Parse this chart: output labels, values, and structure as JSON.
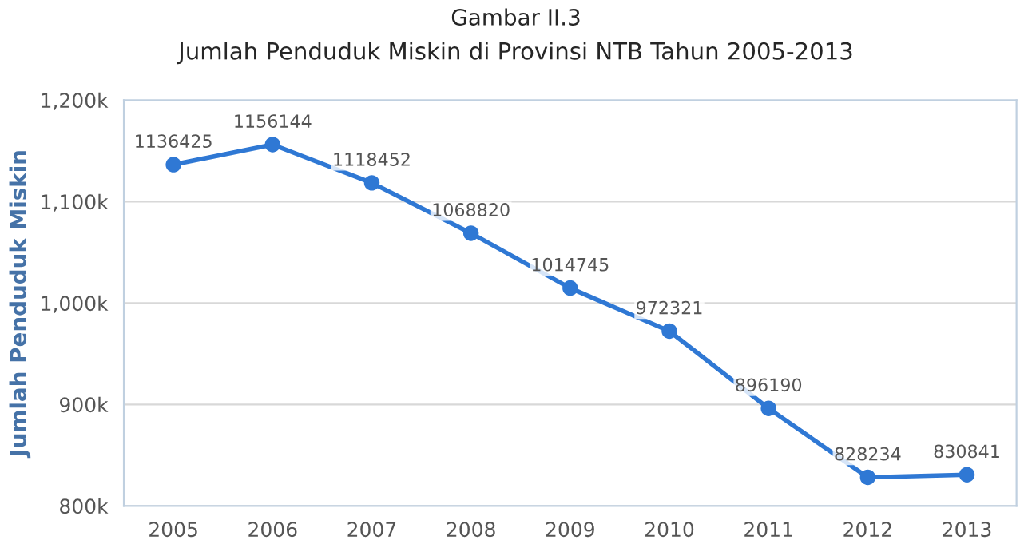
{
  "chart_data": {
    "type": "line",
    "title": "Gambar II.3",
    "subtitle": "Jumlah Penduduk Miskin di Provinsi NTB Tahun 2005-2013",
    "ylabel": "Jumlah Penduduk Miskin",
    "categories": [
      "2005",
      "2006",
      "2007",
      "2008",
      "2009",
      "2010",
      "2011",
      "2012",
      "2013"
    ],
    "series": [
      {
        "color": "#2f78d4",
        "values": [
          1136425,
          1156144,
          1118452,
          1068820,
          1014745,
          972321,
          896190,
          828234,
          830841
        ]
      }
    ],
    "ylim": [
      800000,
      1200000
    ],
    "yticks": [
      {
        "value": 800000,
        "label": "800k"
      },
      {
        "value": 900000,
        "label": "900k"
      },
      {
        "value": 1000000,
        "label": "1,000k"
      },
      {
        "value": 1100000,
        "label": "1,100k"
      },
      {
        "value": 1200000,
        "label": "1,200k"
      }
    ],
    "grid": "y",
    "marker": "circle",
    "line_style": "solid",
    "data_labels": true
  }
}
